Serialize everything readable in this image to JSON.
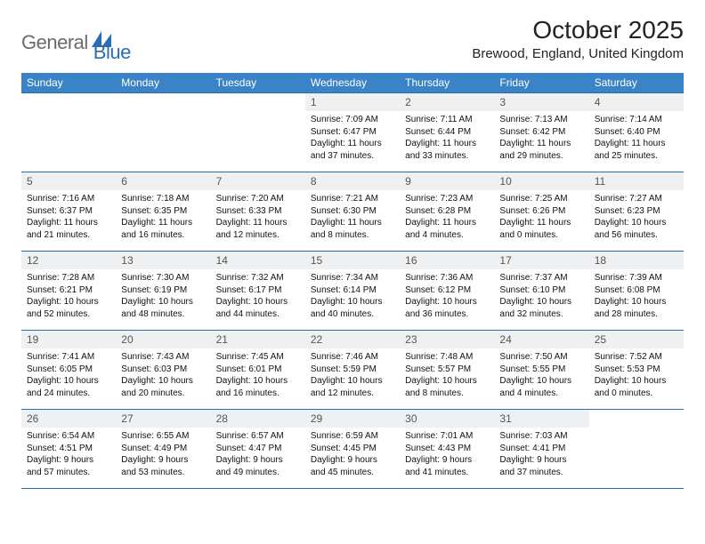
{
  "logo": {
    "part1": "General",
    "part2": "Blue"
  },
  "header": {
    "month_title": "October 2025",
    "location": "Brewood, England, United Kingdom"
  },
  "colors": {
    "header_bg": "#3b83c7",
    "border": "#2a6db3",
    "daynum_bg": "#eef0f2",
    "logo_gray": "#6b6b6b",
    "logo_blue": "#2a6db3"
  },
  "dow": [
    "Sunday",
    "Monday",
    "Tuesday",
    "Wednesday",
    "Thursday",
    "Friday",
    "Saturday"
  ],
  "weeks": [
    [
      {
        "n": "",
        "sr": "",
        "ss": "",
        "dl": ""
      },
      {
        "n": "",
        "sr": "",
        "ss": "",
        "dl": ""
      },
      {
        "n": "",
        "sr": "",
        "ss": "",
        "dl": ""
      },
      {
        "n": "1",
        "sr": "Sunrise: 7:09 AM",
        "ss": "Sunset: 6:47 PM",
        "dl": "Daylight: 11 hours and 37 minutes."
      },
      {
        "n": "2",
        "sr": "Sunrise: 7:11 AM",
        "ss": "Sunset: 6:44 PM",
        "dl": "Daylight: 11 hours and 33 minutes."
      },
      {
        "n": "3",
        "sr": "Sunrise: 7:13 AM",
        "ss": "Sunset: 6:42 PM",
        "dl": "Daylight: 11 hours and 29 minutes."
      },
      {
        "n": "4",
        "sr": "Sunrise: 7:14 AM",
        "ss": "Sunset: 6:40 PM",
        "dl": "Daylight: 11 hours and 25 minutes."
      }
    ],
    [
      {
        "n": "5",
        "sr": "Sunrise: 7:16 AM",
        "ss": "Sunset: 6:37 PM",
        "dl": "Daylight: 11 hours and 21 minutes."
      },
      {
        "n": "6",
        "sr": "Sunrise: 7:18 AM",
        "ss": "Sunset: 6:35 PM",
        "dl": "Daylight: 11 hours and 16 minutes."
      },
      {
        "n": "7",
        "sr": "Sunrise: 7:20 AM",
        "ss": "Sunset: 6:33 PM",
        "dl": "Daylight: 11 hours and 12 minutes."
      },
      {
        "n": "8",
        "sr": "Sunrise: 7:21 AM",
        "ss": "Sunset: 6:30 PM",
        "dl": "Daylight: 11 hours and 8 minutes."
      },
      {
        "n": "9",
        "sr": "Sunrise: 7:23 AM",
        "ss": "Sunset: 6:28 PM",
        "dl": "Daylight: 11 hours and 4 minutes."
      },
      {
        "n": "10",
        "sr": "Sunrise: 7:25 AM",
        "ss": "Sunset: 6:26 PM",
        "dl": "Daylight: 11 hours and 0 minutes."
      },
      {
        "n": "11",
        "sr": "Sunrise: 7:27 AM",
        "ss": "Sunset: 6:23 PM",
        "dl": "Daylight: 10 hours and 56 minutes."
      }
    ],
    [
      {
        "n": "12",
        "sr": "Sunrise: 7:28 AM",
        "ss": "Sunset: 6:21 PM",
        "dl": "Daylight: 10 hours and 52 minutes."
      },
      {
        "n": "13",
        "sr": "Sunrise: 7:30 AM",
        "ss": "Sunset: 6:19 PM",
        "dl": "Daylight: 10 hours and 48 minutes."
      },
      {
        "n": "14",
        "sr": "Sunrise: 7:32 AM",
        "ss": "Sunset: 6:17 PM",
        "dl": "Daylight: 10 hours and 44 minutes."
      },
      {
        "n": "15",
        "sr": "Sunrise: 7:34 AM",
        "ss": "Sunset: 6:14 PM",
        "dl": "Daylight: 10 hours and 40 minutes."
      },
      {
        "n": "16",
        "sr": "Sunrise: 7:36 AM",
        "ss": "Sunset: 6:12 PM",
        "dl": "Daylight: 10 hours and 36 minutes."
      },
      {
        "n": "17",
        "sr": "Sunrise: 7:37 AM",
        "ss": "Sunset: 6:10 PM",
        "dl": "Daylight: 10 hours and 32 minutes."
      },
      {
        "n": "18",
        "sr": "Sunrise: 7:39 AM",
        "ss": "Sunset: 6:08 PM",
        "dl": "Daylight: 10 hours and 28 minutes."
      }
    ],
    [
      {
        "n": "19",
        "sr": "Sunrise: 7:41 AM",
        "ss": "Sunset: 6:05 PM",
        "dl": "Daylight: 10 hours and 24 minutes."
      },
      {
        "n": "20",
        "sr": "Sunrise: 7:43 AM",
        "ss": "Sunset: 6:03 PM",
        "dl": "Daylight: 10 hours and 20 minutes."
      },
      {
        "n": "21",
        "sr": "Sunrise: 7:45 AM",
        "ss": "Sunset: 6:01 PM",
        "dl": "Daylight: 10 hours and 16 minutes."
      },
      {
        "n": "22",
        "sr": "Sunrise: 7:46 AM",
        "ss": "Sunset: 5:59 PM",
        "dl": "Daylight: 10 hours and 12 minutes."
      },
      {
        "n": "23",
        "sr": "Sunrise: 7:48 AM",
        "ss": "Sunset: 5:57 PM",
        "dl": "Daylight: 10 hours and 8 minutes."
      },
      {
        "n": "24",
        "sr": "Sunrise: 7:50 AM",
        "ss": "Sunset: 5:55 PM",
        "dl": "Daylight: 10 hours and 4 minutes."
      },
      {
        "n": "25",
        "sr": "Sunrise: 7:52 AM",
        "ss": "Sunset: 5:53 PM",
        "dl": "Daylight: 10 hours and 0 minutes."
      }
    ],
    [
      {
        "n": "26",
        "sr": "Sunrise: 6:54 AM",
        "ss": "Sunset: 4:51 PM",
        "dl": "Daylight: 9 hours and 57 minutes."
      },
      {
        "n": "27",
        "sr": "Sunrise: 6:55 AM",
        "ss": "Sunset: 4:49 PM",
        "dl": "Daylight: 9 hours and 53 minutes."
      },
      {
        "n": "28",
        "sr": "Sunrise: 6:57 AM",
        "ss": "Sunset: 4:47 PM",
        "dl": "Daylight: 9 hours and 49 minutes."
      },
      {
        "n": "29",
        "sr": "Sunrise: 6:59 AM",
        "ss": "Sunset: 4:45 PM",
        "dl": "Daylight: 9 hours and 45 minutes."
      },
      {
        "n": "30",
        "sr": "Sunrise: 7:01 AM",
        "ss": "Sunset: 4:43 PM",
        "dl": "Daylight: 9 hours and 41 minutes."
      },
      {
        "n": "31",
        "sr": "Sunrise: 7:03 AM",
        "ss": "Sunset: 4:41 PM",
        "dl": "Daylight: 9 hours and 37 minutes."
      },
      {
        "n": "",
        "sr": "",
        "ss": "",
        "dl": ""
      }
    ]
  ]
}
